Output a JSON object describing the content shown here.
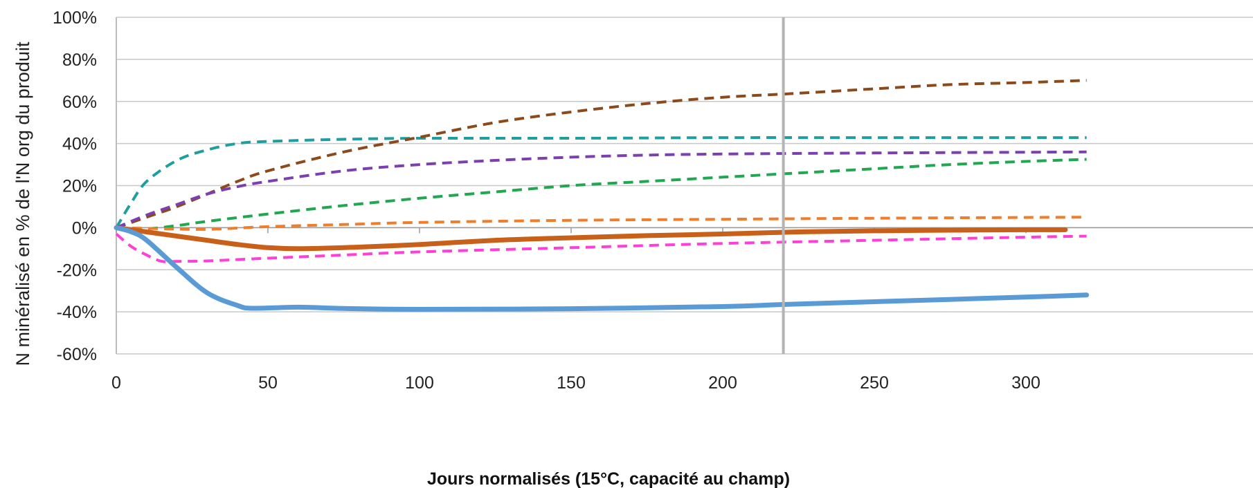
{
  "chart_data": {
    "type": "line",
    "title": "",
    "xlabel": "Jours normalisés (15°C, capacité au champ)",
    "ylabel": "N minéralisé en % de l'N org du produit",
    "xlim": [
      0,
      320
    ],
    "ylim": [
      -60,
      100
    ],
    "x_ticks": [
      "0",
      "50",
      "100",
      "150",
      "200",
      "250",
      "300"
    ],
    "y_ticks": [
      "-60%",
      "-40%",
      "-20%",
      "0%",
      "20%",
      "40%",
      "60%",
      "80%",
      "100%"
    ],
    "grid": "horizontal",
    "reference_line_x": 220,
    "series": [
      {
        "color": "#1f9ea0",
        "style": "dashed",
        "width": 4,
        "points": [
          [
            0,
            0
          ],
          [
            5,
            12
          ],
          [
            10,
            22
          ],
          [
            20,
            32
          ],
          [
            30,
            37
          ],
          [
            40,
            40
          ],
          [
            50,
            41
          ],
          [
            75,
            42
          ],
          [
            100,
            42.5
          ],
          [
            150,
            42.5
          ],
          [
            200,
            42.8
          ],
          [
            250,
            42.8
          ],
          [
            320,
            42.8
          ]
        ]
      },
      {
        "color": "#8b4a1c",
        "style": "dashed",
        "width": 4,
        "points": [
          [
            0,
            0
          ],
          [
            10,
            5
          ],
          [
            20,
            10
          ],
          [
            30,
            16
          ],
          [
            40,
            22
          ],
          [
            50,
            27
          ],
          [
            75,
            36
          ],
          [
            100,
            43
          ],
          [
            125,
            50
          ],
          [
            150,
            55
          ],
          [
            175,
            59
          ],
          [
            200,
            62
          ],
          [
            220,
            63.5
          ],
          [
            250,
            66
          ],
          [
            275,
            68
          ],
          [
            300,
            69
          ],
          [
            320,
            70
          ]
        ]
      },
      {
        "color": "#7b3fb0",
        "style": "dashed",
        "width": 4,
        "points": [
          [
            0,
            0
          ],
          [
            10,
            6
          ],
          [
            20,
            11
          ],
          [
            30,
            16
          ],
          [
            40,
            19.5
          ],
          [
            50,
            22
          ],
          [
            75,
            27
          ],
          [
            100,
            30
          ],
          [
            125,
            32
          ],
          [
            150,
            33.5
          ],
          [
            175,
            34.5
          ],
          [
            200,
            35
          ],
          [
            250,
            35.5
          ],
          [
            320,
            36
          ]
        ]
      },
      {
        "color": "#1fa84f",
        "style": "dashed",
        "width": 4,
        "points": [
          [
            0,
            0
          ],
          [
            10,
            -0.5
          ],
          [
            20,
            1
          ],
          [
            30,
            3
          ],
          [
            50,
            6.5
          ],
          [
            75,
            10.5
          ],
          [
            100,
            14
          ],
          [
            125,
            17
          ],
          [
            150,
            20
          ],
          [
            175,
            22
          ],
          [
            200,
            24
          ],
          [
            225,
            26
          ],
          [
            250,
            28
          ],
          [
            275,
            30
          ],
          [
            300,
            31.5
          ],
          [
            320,
            32.5
          ]
        ]
      },
      {
        "color": "#f07d2a",
        "style": "dashed",
        "width": 4,
        "points": [
          [
            0,
            0
          ],
          [
            15,
            -0.5
          ],
          [
            30,
            -0.8
          ],
          [
            50,
            0.5
          ],
          [
            75,
            1.5
          ],
          [
            100,
            2.5
          ],
          [
            150,
            3.5
          ],
          [
            200,
            4
          ],
          [
            250,
            4.5
          ],
          [
            320,
            5
          ]
        ]
      },
      {
        "color": "#c8601a",
        "style": "solid",
        "width": 7,
        "points": [
          [
            0,
            0
          ],
          [
            10,
            -2
          ],
          [
            20,
            -4
          ],
          [
            30,
            -6
          ],
          [
            40,
            -8
          ],
          [
            50,
            -9.5
          ],
          [
            60,
            -10
          ],
          [
            75,
            -9.5
          ],
          [
            100,
            -8
          ],
          [
            125,
            -6
          ],
          [
            150,
            -4.8
          ],
          [
            175,
            -3.8
          ],
          [
            200,
            -3
          ],
          [
            225,
            -2
          ],
          [
            250,
            -1.5
          ],
          [
            275,
            -1.2
          ],
          [
            300,
            -1
          ],
          [
            313,
            -1
          ]
        ]
      },
      {
        "color": "#ff3fd8",
        "style": "dashed",
        "width": 4,
        "points": [
          [
            0,
            -3
          ],
          [
            5,
            -9
          ],
          [
            10,
            -13
          ],
          [
            15,
            -16
          ],
          [
            20,
            -16
          ],
          [
            30,
            -15.8
          ],
          [
            50,
            -14.5
          ],
          [
            75,
            -13
          ],
          [
            100,
            -11.5
          ],
          [
            150,
            -9.5
          ],
          [
            200,
            -7.5
          ],
          [
            250,
            -6
          ],
          [
            300,
            -4.5
          ],
          [
            320,
            -4
          ]
        ]
      },
      {
        "color": "#5b9bd5",
        "style": "solid",
        "width": 7,
        "points": [
          [
            0,
            0
          ],
          [
            5,
            -2
          ],
          [
            10,
            -6
          ],
          [
            20,
            -19
          ],
          [
            30,
            -31
          ],
          [
            40,
            -37
          ],
          [
            45,
            -38.3
          ],
          [
            60,
            -37.8
          ],
          [
            75,
            -38.4
          ],
          [
            100,
            -38.8
          ],
          [
            150,
            -38.5
          ],
          [
            200,
            -37.5
          ],
          [
            220,
            -36.5
          ],
          [
            250,
            -35.2
          ],
          [
            300,
            -33
          ],
          [
            320,
            -32
          ]
        ]
      }
    ]
  }
}
